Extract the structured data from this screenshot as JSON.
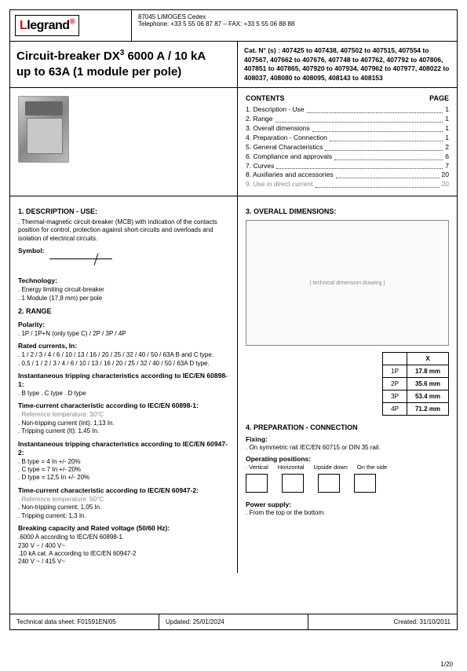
{
  "header": {
    "brand_prefix": "L",
    "brand": "legrand",
    "reg": "®",
    "address": "87045 LIMOGES Cedex",
    "phone": "Telephone: +33 5 55 06 87 87 – FAX: +33 5 55 06 88 88"
  },
  "title": {
    "line1_a": "Circuit-breaker DX",
    "line1_sup": "3",
    "line1_b": " 6000 A / 10 kA",
    "line2": "up to 63A (1 module per pole)"
  },
  "catnos": "Cat. N°   (s) : 407425 to 407438, 407502 to 407515, 407554 to 407567, 407662 to 407676, 407748 to 407762, 407792 to 407806, 407851 to 407865, 407920 to 407934, 407962 to 407977, 408022 to 408037, 408080 to 408095, 408143 to 408153",
  "contents": {
    "heading": "CONTENTS",
    "page_label": "PAGE",
    "items": [
      {
        "t": "1. Description - Use",
        "p": "1"
      },
      {
        "t": "2. Range",
        "p": "1"
      },
      {
        "t": "3. Overall dimensions",
        "p": "1"
      },
      {
        "t": "4. Preparation - Connection",
        "p": "1"
      },
      {
        "t": "5. General Characteristics",
        "p": "2"
      },
      {
        "t": "6. Compliance and approvals",
        "p": "6"
      },
      {
        "t": "7. Curves",
        "p": "7"
      },
      {
        "t": "8. Auxiliaries and accessories",
        "p": "20"
      },
      {
        "t": "9. Use in direct current",
        "p": "20"
      }
    ]
  },
  "left": {
    "h_desc": "1. DESCRIPTION - USE:",
    "desc": ". Thermal-magnetic circuit-breaker (MCB) with indication of the contacts position for control, protection against short-circuits and overloads and isolation of electrical circuits.",
    "h_symbol": "Symbol:",
    "h_tech": "Technology:",
    "tech1": ". Energy limiting circuit-breaker",
    "tech2": ". 1 Module (17,8 mm) per pole",
    "h_range": "2. RANGE",
    "h_pol": "Polarity:",
    "pol": ". 1P / 1P+N (only type C) / 2P / 3P / 4P",
    "h_rated": "Rated currents, In:",
    "rated1": ". 1 / 2 / 3 / 4 / 6 / 10 / 13 / 16 / 20 / 25 / 32 / 40 / 50 / 63A B and C type.",
    "rated2": ". 0,5 / 1 / 2 / 3 / 4 / 6 / 10 / 13 / 16 / 20 / 25 / 32 / 40 / 50 / 63A D type.",
    "h_inst1": "Instantaneous tripping characteristics according to IEC/EN 60898-1:",
    "inst1": ". B type    . C type    . D type",
    "h_tc1": "Time-current characteristic according to IEC/EN 60898-1:",
    "tc1a": ". Reference temperature: 30°C",
    "tc1b": ". Non-tripping current (Int): 1,13 In.",
    "tc1c": ". Tripping current (It): 1,45 In.",
    "h_inst2": "Instantaneous tripping characteristics according to IEC/EN 60947-2:",
    "inst2a": ". B type = 4 In +/- 20%",
    "inst2b": ". C type = 7 In +/- 20%",
    "inst2c": ". D type = 12,5 In +/- 20%",
    "h_tc2": "Time-current characteristic according to IEC/EN 60947-2:",
    "tc2a": ". Reference temperature: 50°C",
    "tc2b": ". Non-tripping current: 1,05 In.",
    "tc2c": ". Tripping current: 1,3 In.",
    "h_break": "Breaking capacity and Rated voltage (50/60 Hz):",
    "break1": ".6000 A according to IEC/EN 60898-1",
    "break2": "  230 V ~ / 400 V~",
    "break3": ".10 kA cat. A according to IEC/EN 60947-2",
    "break4": "  240 V ~ / 415 V~"
  },
  "right": {
    "h_dim": "3. OVERALL DIMENSIONS:",
    "dim_placeholder": "[ technical dimension drawing ]",
    "dim_table": {
      "header": "X",
      "rows": [
        {
          "k": "1P",
          "v": "17.8 mm"
        },
        {
          "k": "2P",
          "v": "35.6 mm"
        },
        {
          "k": "3P",
          "v": "53.4 mm"
        },
        {
          "k": "4P",
          "v": "71.2 mm"
        }
      ]
    },
    "h_prep": "4. PREPARATION - CONNECTION",
    "h_fix": "Fixing:",
    "fix": ". On symmetric rail IEC/EN 60715 or DIN 35 rail.",
    "h_pos": "Operating positions:",
    "pos_labels": [
      ". Vertical",
      "Horizontal",
      "Upside down",
      "On the side"
    ],
    "h_pow": "Power supply:",
    "pow": ". From the top or the bottom."
  },
  "footer": {
    "a": "Technical data sheet: F01591EN/05",
    "b": "Updated: 25/01/2024",
    "c": "Created: 31/10/2011"
  },
  "pagenum": "1/20"
}
